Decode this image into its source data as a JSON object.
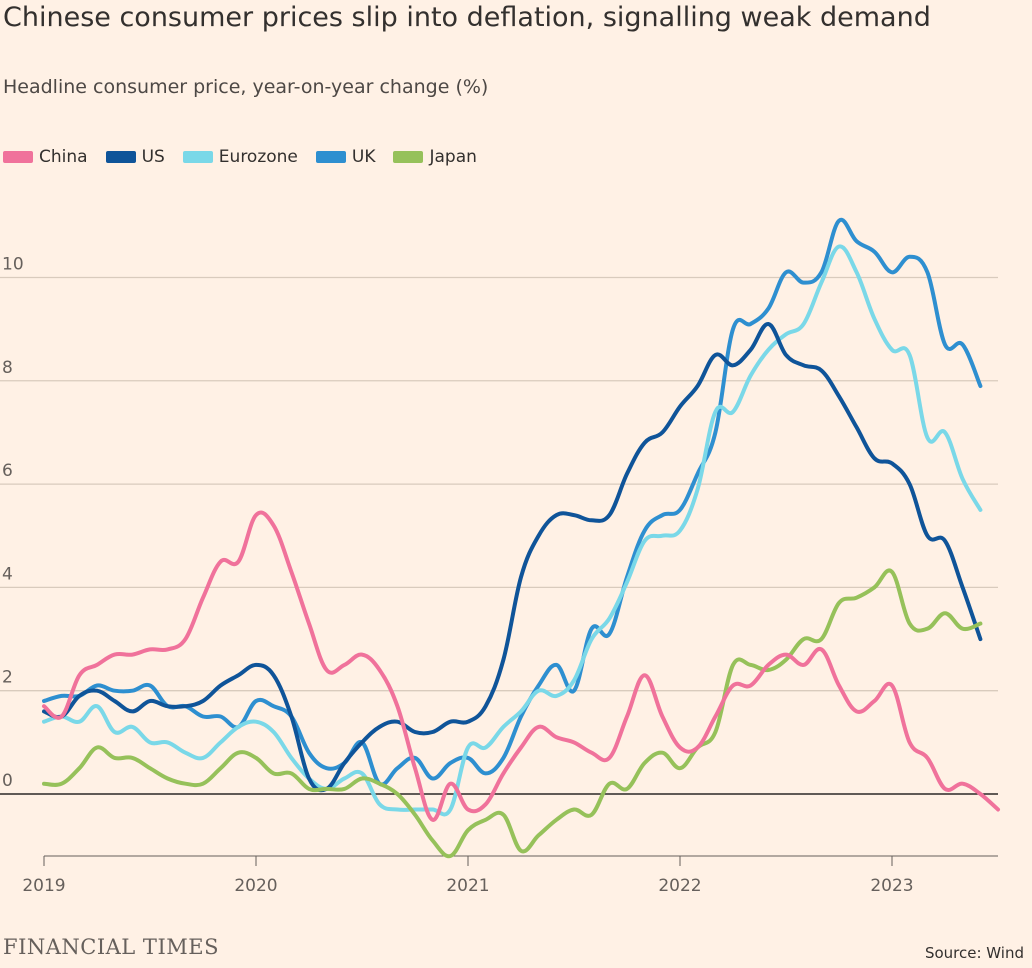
{
  "header": {
    "title": "Chinese consumer prices slip into deflation, signalling weak demand",
    "subtitle": "Headline consumer price, year-on-year change (%)"
  },
  "footer": {
    "brand": "FINANCIAL TIMES",
    "source": "Source: Wind"
  },
  "chart_data": {
    "type": "line",
    "title": "Chinese consumer prices slip into deflation, signalling weak demand",
    "subtitle": "Headline consumer price, year-on-year change (%)",
    "xlabel": "",
    "ylabel": "",
    "xlim": [
      2019.0,
      2023.5
    ],
    "ylim": [
      -1.2,
      11.5
    ],
    "yticks": [
      0,
      2,
      4,
      6,
      8,
      10
    ],
    "xticks": [
      2019,
      2020,
      2021,
      2022,
      2023
    ],
    "grid": true,
    "legend_position": "top-left",
    "series": [
      {
        "name": "China",
        "color": "#f0729b",
        "points": [
          [
            2019.0,
            1.7
          ],
          [
            2019.083,
            1.5
          ],
          [
            2019.167,
            2.3
          ],
          [
            2019.25,
            2.5
          ],
          [
            2019.333,
            2.7
          ],
          [
            2019.417,
            2.7
          ],
          [
            2019.5,
            2.8
          ],
          [
            2019.583,
            2.8
          ],
          [
            2019.667,
            3.0
          ],
          [
            2019.75,
            3.8
          ],
          [
            2019.833,
            4.5
          ],
          [
            2019.917,
            4.5
          ],
          [
            2020.0,
            5.4
          ],
          [
            2020.083,
            5.2
          ],
          [
            2020.167,
            4.3
          ],
          [
            2020.25,
            3.3
          ],
          [
            2020.333,
            2.4
          ],
          [
            2020.417,
            2.5
          ],
          [
            2020.5,
            2.7
          ],
          [
            2020.583,
            2.4
          ],
          [
            2020.667,
            1.7
          ],
          [
            2020.75,
            0.5
          ],
          [
            2020.833,
            -0.5
          ],
          [
            2020.917,
            0.2
          ],
          [
            2021.0,
            -0.3
          ],
          [
            2021.083,
            -0.2
          ],
          [
            2021.167,
            0.4
          ],
          [
            2021.25,
            0.9
          ],
          [
            2021.333,
            1.3
          ],
          [
            2021.417,
            1.1
          ],
          [
            2021.5,
            1.0
          ],
          [
            2021.583,
            0.8
          ],
          [
            2021.667,
            0.7
          ],
          [
            2021.75,
            1.5
          ],
          [
            2021.833,
            2.3
          ],
          [
            2021.917,
            1.5
          ],
          [
            2022.0,
            0.9
          ],
          [
            2022.083,
            0.9
          ],
          [
            2022.167,
            1.5
          ],
          [
            2022.25,
            2.1
          ],
          [
            2022.333,
            2.1
          ],
          [
            2022.417,
            2.5
          ],
          [
            2022.5,
            2.7
          ],
          [
            2022.583,
            2.5
          ],
          [
            2022.667,
            2.8
          ],
          [
            2022.75,
            2.1
          ],
          [
            2022.833,
            1.6
          ],
          [
            2022.917,
            1.8
          ],
          [
            2023.0,
            2.1
          ],
          [
            2023.083,
            1.0
          ],
          [
            2023.167,
            0.7
          ],
          [
            2023.25,
            0.1
          ],
          [
            2023.333,
            0.2
          ],
          [
            2023.417,
            0.0
          ],
          [
            2023.5,
            -0.3
          ]
        ]
      },
      {
        "name": "US",
        "color": "#0f5499",
        "points": [
          [
            2019.0,
            1.6
          ],
          [
            2019.083,
            1.5
          ],
          [
            2019.167,
            1.9
          ],
          [
            2019.25,
            2.0
          ],
          [
            2019.333,
            1.8
          ],
          [
            2019.417,
            1.6
          ],
          [
            2019.5,
            1.8
          ],
          [
            2019.583,
            1.7
          ],
          [
            2019.667,
            1.7
          ],
          [
            2019.75,
            1.8
          ],
          [
            2019.833,
            2.1
          ],
          [
            2019.917,
            2.3
          ],
          [
            2020.0,
            2.5
          ],
          [
            2020.083,
            2.3
          ],
          [
            2020.167,
            1.5
          ],
          [
            2020.25,
            0.3
          ],
          [
            2020.333,
            0.1
          ],
          [
            2020.417,
            0.6
          ],
          [
            2020.5,
            1.0
          ],
          [
            2020.583,
            1.3
          ],
          [
            2020.667,
            1.4
          ],
          [
            2020.75,
            1.2
          ],
          [
            2020.833,
            1.2
          ],
          [
            2020.917,
            1.4
          ],
          [
            2021.0,
            1.4
          ],
          [
            2021.083,
            1.7
          ],
          [
            2021.167,
            2.6
          ],
          [
            2021.25,
            4.2
          ],
          [
            2021.333,
            5.0
          ],
          [
            2021.417,
            5.4
          ],
          [
            2021.5,
            5.4
          ],
          [
            2021.583,
            5.3
          ],
          [
            2021.667,
            5.4
          ],
          [
            2021.75,
            6.2
          ],
          [
            2021.833,
            6.8
          ],
          [
            2021.917,
            7.0
          ],
          [
            2022.0,
            7.5
          ],
          [
            2022.083,
            7.9
          ],
          [
            2022.167,
            8.5
          ],
          [
            2022.25,
            8.3
          ],
          [
            2022.333,
            8.6
          ],
          [
            2022.417,
            9.1
          ],
          [
            2022.5,
            8.5
          ],
          [
            2022.583,
            8.3
          ],
          [
            2022.667,
            8.2
          ],
          [
            2022.75,
            7.7
          ],
          [
            2022.833,
            7.1
          ],
          [
            2022.917,
            6.5
          ],
          [
            2023.0,
            6.4
          ],
          [
            2023.083,
            6.0
          ],
          [
            2023.167,
            5.0
          ],
          [
            2023.25,
            4.9
          ],
          [
            2023.333,
            4.0
          ],
          [
            2023.417,
            3.0
          ]
        ]
      },
      {
        "name": "Eurozone",
        "color": "#7ad8e8",
        "points": [
          [
            2019.0,
            1.4
          ],
          [
            2019.083,
            1.5
          ],
          [
            2019.167,
            1.4
          ],
          [
            2019.25,
            1.7
          ],
          [
            2019.333,
            1.2
          ],
          [
            2019.417,
            1.3
          ],
          [
            2019.5,
            1.0
          ],
          [
            2019.583,
            1.0
          ],
          [
            2019.667,
            0.8
          ],
          [
            2019.75,
            0.7
          ],
          [
            2019.833,
            1.0
          ],
          [
            2019.917,
            1.3
          ],
          [
            2020.0,
            1.4
          ],
          [
            2020.083,
            1.2
          ],
          [
            2020.167,
            0.7
          ],
          [
            2020.25,
            0.3
          ],
          [
            2020.333,
            0.1
          ],
          [
            2020.417,
            0.3
          ],
          [
            2020.5,
            0.4
          ],
          [
            2020.583,
            -0.2
          ],
          [
            2020.667,
            -0.3
          ],
          [
            2020.75,
            -0.3
          ],
          [
            2020.833,
            -0.3
          ],
          [
            2020.917,
            -0.3
          ],
          [
            2021.0,
            0.9
          ],
          [
            2021.083,
            0.9
          ],
          [
            2021.167,
            1.3
          ],
          [
            2021.25,
            1.6
          ],
          [
            2021.333,
            2.0
          ],
          [
            2021.417,
            1.9
          ],
          [
            2021.5,
            2.2
          ],
          [
            2021.583,
            3.0
          ],
          [
            2021.667,
            3.4
          ],
          [
            2021.75,
            4.1
          ],
          [
            2021.833,
            4.9
          ],
          [
            2021.917,
            5.0
          ],
          [
            2022.0,
            5.1
          ],
          [
            2022.083,
            5.9
          ],
          [
            2022.167,
            7.4
          ],
          [
            2022.25,
            7.4
          ],
          [
            2022.333,
            8.1
          ],
          [
            2022.417,
            8.6
          ],
          [
            2022.5,
            8.9
          ],
          [
            2022.583,
            9.1
          ],
          [
            2022.667,
            9.9
          ],
          [
            2022.75,
            10.6
          ],
          [
            2022.833,
            10.1
          ],
          [
            2022.917,
            9.2
          ],
          [
            2023.0,
            8.6
          ],
          [
            2023.083,
            8.5
          ],
          [
            2023.167,
            6.9
          ],
          [
            2023.25,
            7.0
          ],
          [
            2023.333,
            6.1
          ],
          [
            2023.417,
            5.5
          ]
        ]
      },
      {
        "name": "UK",
        "color": "#2e8fd0",
        "points": [
          [
            2019.0,
            1.8
          ],
          [
            2019.083,
            1.9
          ],
          [
            2019.167,
            1.9
          ],
          [
            2019.25,
            2.1
          ],
          [
            2019.333,
            2.0
          ],
          [
            2019.417,
            2.0
          ],
          [
            2019.5,
            2.1
          ],
          [
            2019.583,
            1.7
          ],
          [
            2019.667,
            1.7
          ],
          [
            2019.75,
            1.5
          ],
          [
            2019.833,
            1.5
          ],
          [
            2019.917,
            1.3
          ],
          [
            2020.0,
            1.8
          ],
          [
            2020.083,
            1.7
          ],
          [
            2020.167,
            1.5
          ],
          [
            2020.25,
            0.8
          ],
          [
            2020.333,
            0.5
          ],
          [
            2020.417,
            0.6
          ],
          [
            2020.5,
            1.0
          ],
          [
            2020.583,
            0.2
          ],
          [
            2020.667,
            0.5
          ],
          [
            2020.75,
            0.7
          ],
          [
            2020.833,
            0.3
          ],
          [
            2020.917,
            0.6
          ],
          [
            2021.0,
            0.7
          ],
          [
            2021.083,
            0.4
          ],
          [
            2021.167,
            0.7
          ],
          [
            2021.25,
            1.5
          ],
          [
            2021.333,
            2.1
          ],
          [
            2021.417,
            2.5
          ],
          [
            2021.5,
            2.0
          ],
          [
            2021.583,
            3.2
          ],
          [
            2021.667,
            3.1
          ],
          [
            2021.75,
            4.2
          ],
          [
            2021.833,
            5.1
          ],
          [
            2021.917,
            5.4
          ],
          [
            2022.0,
            5.5
          ],
          [
            2022.083,
            6.2
          ],
          [
            2022.167,
            7.0
          ],
          [
            2022.25,
            9.0
          ],
          [
            2022.333,
            9.1
          ],
          [
            2022.417,
            9.4
          ],
          [
            2022.5,
            10.1
          ],
          [
            2022.583,
            9.9
          ],
          [
            2022.667,
            10.1
          ],
          [
            2022.75,
            11.1
          ],
          [
            2022.833,
            10.7
          ],
          [
            2022.917,
            10.5
          ],
          [
            2023.0,
            10.1
          ],
          [
            2023.083,
            10.4
          ],
          [
            2023.167,
            10.1
          ],
          [
            2023.25,
            8.7
          ],
          [
            2023.333,
            8.7
          ],
          [
            2023.417,
            7.9
          ]
        ]
      },
      {
        "name": "Japan",
        "color": "#96c15a",
        "points": [
          [
            2019.0,
            0.2
          ],
          [
            2019.083,
            0.2
          ],
          [
            2019.167,
            0.5
          ],
          [
            2019.25,
            0.9
          ],
          [
            2019.333,
            0.7
          ],
          [
            2019.417,
            0.7
          ],
          [
            2019.5,
            0.5
          ],
          [
            2019.583,
            0.3
          ],
          [
            2019.667,
            0.2
          ],
          [
            2019.75,
            0.2
          ],
          [
            2019.833,
            0.5
          ],
          [
            2019.917,
            0.8
          ],
          [
            2020.0,
            0.7
          ],
          [
            2020.083,
            0.4
          ],
          [
            2020.167,
            0.4
          ],
          [
            2020.25,
            0.1
          ],
          [
            2020.333,
            0.1
          ],
          [
            2020.417,
            0.1
          ],
          [
            2020.5,
            0.3
          ],
          [
            2020.583,
            0.2
          ],
          [
            2020.667,
            0.0
          ],
          [
            2020.75,
            -0.4
          ],
          [
            2020.833,
            -0.9
          ],
          [
            2020.917,
            -1.2
          ],
          [
            2021.0,
            -0.7
          ],
          [
            2021.083,
            -0.5
          ],
          [
            2021.167,
            -0.4
          ],
          [
            2021.25,
            -1.1
          ],
          [
            2021.333,
            -0.8
          ],
          [
            2021.417,
            -0.5
          ],
          [
            2021.5,
            -0.3
          ],
          [
            2021.583,
            -0.4
          ],
          [
            2021.667,
            0.2
          ],
          [
            2021.75,
            0.1
          ],
          [
            2021.833,
            0.6
          ],
          [
            2021.917,
            0.8
          ],
          [
            2022.0,
            0.5
          ],
          [
            2022.083,
            0.9
          ],
          [
            2022.167,
            1.2
          ],
          [
            2022.25,
            2.5
          ],
          [
            2022.333,
            2.5
          ],
          [
            2022.417,
            2.4
          ],
          [
            2022.5,
            2.6
          ],
          [
            2022.583,
            3.0
          ],
          [
            2022.667,
            3.0
          ],
          [
            2022.75,
            3.7
          ],
          [
            2022.833,
            3.8
          ],
          [
            2022.917,
            4.0
          ],
          [
            2023.0,
            4.3
          ],
          [
            2023.083,
            3.3
          ],
          [
            2023.167,
            3.2
          ],
          [
            2023.25,
            3.5
          ],
          [
            2023.333,
            3.2
          ],
          [
            2023.417,
            3.3
          ]
        ]
      }
    ]
  }
}
